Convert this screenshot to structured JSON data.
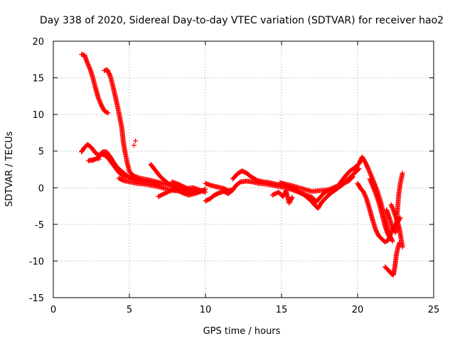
{
  "chart_data": {
    "type": "scatter",
    "title": "Day 338 of 2020, Sidereal Day-to-day VTEC variation (SDTVAR) for receiver hao2",
    "xlabel": "GPS time / hours",
    "ylabel": "SDTVAR / TECUs",
    "xlim": [
      0,
      25
    ],
    "ylim": [
      -15,
      20
    ],
    "xticks": [
      "0",
      "5",
      "10",
      "15",
      "20",
      "25"
    ],
    "yticks": [
      "-15",
      "-10",
      "-5",
      "0",
      "5",
      "10",
      "15",
      "20"
    ],
    "grid": true,
    "marker": "+",
    "color": "#ff0000",
    "series": [
      {
        "name": "track-1",
        "points": [
          [
            1.85,
            18.2
          ],
          [
            2.05,
            18.1
          ],
          [
            2.25,
            17.0
          ],
          [
            2.45,
            16.0
          ],
          [
            2.6,
            15.0
          ],
          [
            2.75,
            13.8
          ],
          [
            2.95,
            12.3
          ],
          [
            3.15,
            11.3
          ],
          [
            3.35,
            10.5
          ],
          [
            3.6,
            10.2
          ]
        ]
      },
      {
        "name": "track-2",
        "points": [
          [
            3.35,
            16.0
          ],
          [
            3.55,
            16.1
          ],
          [
            3.75,
            15.2
          ],
          [
            3.9,
            14.0
          ],
          [
            4.05,
            12.7
          ],
          [
            4.2,
            11.3
          ],
          [
            4.35,
            9.8
          ],
          [
            4.5,
            8.2
          ],
          [
            4.6,
            6.3
          ],
          [
            4.7,
            5.0
          ],
          [
            4.85,
            3.5
          ],
          [
            5.0,
            2.2
          ],
          [
            5.3,
            1.6
          ],
          [
            5.7,
            1.3
          ],
          [
            6.2,
            1.1
          ],
          [
            6.8,
            0.8
          ],
          [
            7.4,
            0.5
          ],
          [
            8.0,
            0.3
          ],
          [
            8.6,
            0.1
          ]
        ]
      },
      {
        "name": "track-3",
        "points": [
          [
            1.85,
            4.9
          ],
          [
            2.05,
            5.5
          ],
          [
            2.25,
            5.9
          ],
          [
            2.5,
            5.5
          ],
          [
            2.75,
            4.8
          ],
          [
            3.0,
            4.4
          ],
          [
            3.25,
            4.9
          ],
          [
            3.5,
            4.9
          ],
          [
            3.75,
            4.2
          ],
          [
            3.95,
            3.5
          ],
          [
            4.2,
            2.8
          ],
          [
            4.45,
            2.3
          ],
          [
            4.75,
            1.8
          ],
          [
            5.1,
            1.3
          ],
          [
            5.5,
            1.0
          ],
          [
            6.0,
            0.8
          ],
          [
            6.5,
            0.6
          ]
        ]
      },
      {
        "name": "track-4",
        "points": [
          [
            2.3,
            3.7
          ],
          [
            2.6,
            3.8
          ],
          [
            2.9,
            4.0
          ],
          [
            3.2,
            4.6
          ],
          [
            3.5,
            4.3
          ],
          [
            3.8,
            3.5
          ],
          [
            4.05,
            2.8
          ],
          [
            4.3,
            2.1
          ],
          [
            4.6,
            1.6
          ],
          [
            5.0,
            1.4
          ],
          [
            5.5,
            1.2
          ],
          [
            6.0,
            0.9
          ],
          [
            6.5,
            0.6
          ],
          [
            7.0,
            0.4
          ]
        ]
      },
      {
        "name": "track-5",
        "points": [
          [
            4.3,
            1.3
          ],
          [
            4.6,
            1.0
          ],
          [
            5.0,
            0.8
          ],
          [
            5.5,
            0.6
          ],
          [
            6.0,
            0.5
          ],
          [
            6.5,
            0.3
          ],
          [
            7.0,
            0.1
          ],
          [
            7.5,
            -0.2
          ],
          [
            8.0,
            -0.4
          ],
          [
            8.5,
            -0.5
          ],
          [
            9.0,
            -0.6
          ]
        ]
      },
      {
        "name": "track-6",
        "points": [
          [
            6.4,
            3.2
          ],
          [
            6.7,
            2.4
          ],
          [
            7.0,
            1.6
          ],
          [
            7.3,
            1.0
          ],
          [
            7.6,
            0.5
          ],
          [
            8.0,
            0.1
          ],
          [
            8.4,
            -0.2
          ],
          [
            8.8,
            -0.1
          ],
          [
            9.2,
            0.0
          ],
          [
            9.6,
            -0.3
          ],
          [
            10.0,
            -0.6
          ]
        ]
      },
      {
        "name": "track-7",
        "points": [
          [
            6.9,
            -1.2
          ],
          [
            7.3,
            -0.8
          ],
          [
            7.7,
            -0.4
          ],
          [
            8.1,
            -0.2
          ],
          [
            8.5,
            -0.7
          ],
          [
            8.9,
            -1.0
          ],
          [
            9.3,
            -0.8
          ],
          [
            9.7,
            -0.5
          ],
          [
            10.0,
            -0.2
          ]
        ]
      },
      {
        "name": "track-8",
        "points": [
          [
            7.8,
            0.8
          ],
          [
            8.2,
            0.5
          ],
          [
            8.6,
            0.1
          ],
          [
            9.0,
            -0.3
          ],
          [
            9.4,
            -0.6
          ],
          [
            9.8,
            -0.4
          ]
        ]
      },
      {
        "name": "track-9",
        "points": [
          [
            10.0,
            0.6
          ],
          [
            10.4,
            0.3
          ],
          [
            10.8,
            0.1
          ],
          [
            11.2,
            -0.1
          ],
          [
            11.5,
            -0.4
          ],
          [
            11.8,
            -0.3
          ],
          [
            12.0,
            0.3
          ],
          [
            12.3,
            0.8
          ],
          [
            12.7,
            0.9
          ],
          [
            13.1,
            0.8
          ],
          [
            13.5,
            0.6
          ],
          [
            14.0,
            0.5
          ],
          [
            14.5,
            0.3
          ],
          [
            15.0,
            0.1
          ],
          [
            15.5,
            -0.1
          ],
          [
            16.0,
            -0.5
          ],
          [
            16.5,
            -0.9
          ],
          [
            17.0,
            -1.3
          ],
          [
            17.3,
            -1.9
          ],
          [
            17.5,
            -1.4
          ],
          [
            17.8,
            -0.7
          ],
          [
            18.2,
            -0.2
          ],
          [
            18.6,
            0.2
          ],
          [
            19.0,
            0.5
          ],
          [
            19.4,
            0.9
          ],
          [
            19.7,
            1.5
          ]
        ]
      },
      {
        "name": "track-10",
        "points": [
          [
            10.0,
            -1.8
          ],
          [
            10.3,
            -1.5
          ],
          [
            10.6,
            -1.0
          ],
          [
            10.9,
            -0.7
          ],
          [
            11.2,
            -0.5
          ],
          [
            11.5,
            -0.8
          ],
          [
            11.8,
            -0.3
          ]
        ]
      },
      {
        "name": "track-11",
        "points": [
          [
            11.8,
            1.2
          ],
          [
            12.1,
            1.9
          ],
          [
            12.4,
            2.3
          ],
          [
            12.7,
            2.0
          ],
          [
            13.0,
            1.5
          ],
          [
            13.4,
            1.0
          ],
          [
            13.8,
            0.8
          ],
          [
            14.2,
            0.7
          ],
          [
            14.6,
            0.5
          ],
          [
            15.0,
            0.3
          ]
        ]
      },
      {
        "name": "track-12",
        "points": [
          [
            14.9,
            0.7
          ],
          [
            15.3,
            0.3
          ],
          [
            15.7,
            -0.1
          ],
          [
            16.1,
            -0.5
          ],
          [
            16.5,
            -1.0
          ],
          [
            16.9,
            -1.7
          ],
          [
            17.2,
            -2.4
          ],
          [
            17.4,
            -2.8
          ],
          [
            17.6,
            -2.1
          ],
          [
            17.9,
            -1.4
          ],
          [
            18.2,
            -0.8
          ],
          [
            18.6,
            -0.2
          ],
          [
            19.0,
            0.4
          ],
          [
            19.4,
            1.2
          ],
          [
            19.8,
            2.0
          ],
          [
            20.1,
            2.6
          ]
        ]
      },
      {
        "name": "track-13",
        "points": [
          [
            15.0,
            0.6
          ],
          [
            15.5,
            0.4
          ],
          [
            16.0,
            0.1
          ],
          [
            16.5,
            -0.2
          ],
          [
            17.0,
            -0.5
          ],
          [
            17.5,
            -0.4
          ],
          [
            18.0,
            -0.3
          ],
          [
            18.5,
            -0.1
          ]
        ]
      },
      {
        "name": "track-14",
        "points": [
          [
            14.4,
            -1.0
          ],
          [
            14.8,
            -0.6
          ],
          [
            15.1,
            -1.2
          ],
          [
            15.3,
            -0.4
          ],
          [
            15.5,
            -2.1
          ],
          [
            15.7,
            -1.3
          ]
        ]
      },
      {
        "name": "track-15",
        "points": [
          [
            18.6,
            -0.2
          ],
          [
            18.9,
            0.8
          ],
          [
            19.2,
            1.6
          ],
          [
            19.5,
            2.3
          ],
          [
            19.8,
            2.7
          ],
          [
            20.1,
            3.3
          ],
          [
            20.3,
            4.2
          ],
          [
            20.5,
            3.5
          ],
          [
            20.7,
            2.6
          ],
          [
            20.9,
            1.6
          ],
          [
            21.1,
            0.6
          ],
          [
            21.3,
            -0.5
          ],
          [
            21.5,
            -1.8
          ],
          [
            21.7,
            -3.4
          ],
          [
            21.9,
            -5.0
          ],
          [
            22.1,
            -6.5
          ],
          [
            22.3,
            -7.3
          ]
        ]
      },
      {
        "name": "track-16",
        "points": [
          [
            20.0,
            0.6
          ],
          [
            20.2,
            -0.1
          ],
          [
            20.4,
            -0.6
          ],
          [
            20.6,
            -1.6
          ],
          [
            20.8,
            -3.0
          ],
          [
            21.0,
            -4.5
          ],
          [
            21.2,
            -5.8
          ],
          [
            21.4,
            -6.6
          ],
          [
            21.6,
            -7.0
          ],
          [
            21.8,
            -7.4
          ],
          [
            22.0,
            -7.2
          ],
          [
            22.2,
            -6.2
          ],
          [
            22.4,
            -5.2
          ],
          [
            22.6,
            -4.8
          ],
          [
            22.8,
            -4.1
          ]
        ]
      },
      {
        "name": "track-17",
        "points": [
          [
            20.8,
            1.2
          ],
          [
            21.0,
            0.2
          ],
          [
            21.2,
            -0.8
          ],
          [
            21.4,
            -2.0
          ],
          [
            21.6,
            -3.6
          ],
          [
            21.8,
            -5.2
          ],
          [
            22.0,
            -6.4
          ],
          [
            22.2,
            -6.9
          ]
        ]
      },
      {
        "name": "track-18",
        "points": [
          [
            21.9,
            -3.0
          ],
          [
            22.1,
            -4.2
          ],
          [
            22.3,
            -5.5
          ],
          [
            22.5,
            -6.1
          ],
          [
            22.6,
            -3.6
          ],
          [
            22.7,
            -1.0
          ],
          [
            22.8,
            0.5
          ],
          [
            22.95,
            2.0
          ]
        ]
      },
      {
        "name": "track-19",
        "points": [
          [
            22.2,
            -2.3
          ],
          [
            22.4,
            -3.3
          ],
          [
            22.6,
            -4.5
          ],
          [
            22.75,
            -5.6
          ],
          [
            22.85,
            -6.9
          ],
          [
            22.95,
            -8.1
          ]
        ]
      },
      {
        "name": "track-20",
        "points": [
          [
            21.8,
            -10.8
          ],
          [
            22.0,
            -11.2
          ],
          [
            22.2,
            -11.7
          ],
          [
            22.35,
            -11.9
          ],
          [
            22.45,
            -10.8
          ],
          [
            22.55,
            -9.1
          ],
          [
            22.65,
            -8.2
          ],
          [
            22.75,
            -7.5
          ]
        ]
      }
    ],
    "isolated_points": [
      [
        5.4,
        6.4
      ],
      [
        5.3,
        5.8
      ],
      [
        2.6,
        3.7
      ],
      [
        3.0,
        3.9
      ]
    ]
  }
}
